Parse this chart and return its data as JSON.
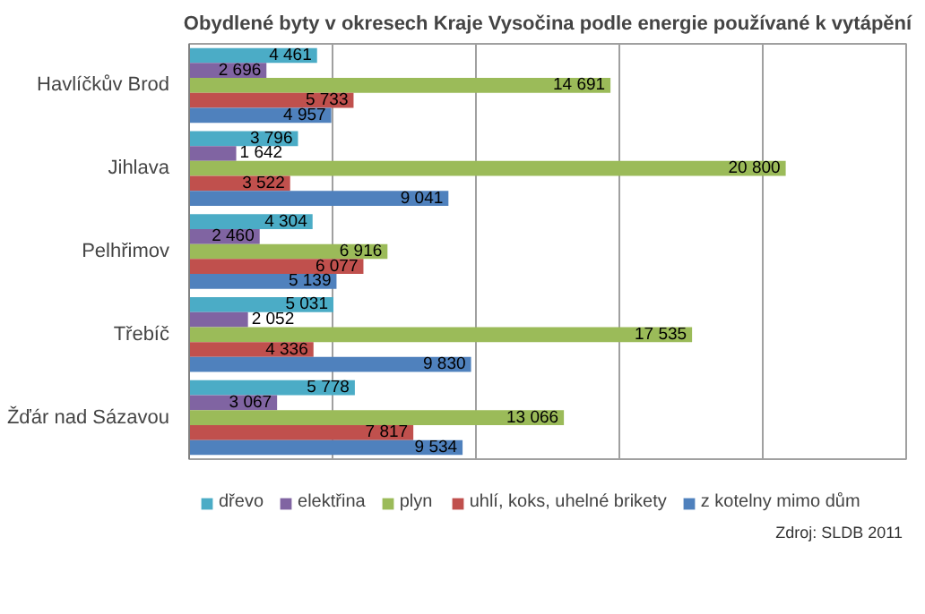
{
  "chart_data": {
    "type": "bar",
    "orientation": "horizontal",
    "title": "Obydlené byty v okresech Kraje Vysočina podle energie používané k vytápění",
    "categories": [
      "Havlíčkův Brod",
      "Jihlava",
      "Pelhřimov",
      "Třebíč",
      "Žďár nad Sázavou"
    ],
    "series": [
      {
        "name": "dřevo",
        "color": "#4bacc6",
        "values": [
          4461,
          3796,
          4304,
          5031,
          5778
        ],
        "value_labels": [
          "4 461",
          "3 796",
          "4 304",
          "5 031",
          "5 778"
        ]
      },
      {
        "name": "elektřina",
        "color": "#8064a2",
        "values": [
          2696,
          1642,
          2460,
          2052,
          3067
        ],
        "value_labels": [
          "2 696",
          "1 642",
          "2 460",
          "2 052",
          "3 067"
        ]
      },
      {
        "name": "plyn",
        "color": "#9bbb59",
        "values": [
          14691,
          20800,
          6916,
          17535,
          13066
        ],
        "value_labels": [
          "14 691",
          "20 800",
          "6 916",
          "17 535",
          "13 066"
        ]
      },
      {
        "name": "uhlí, koks, uhelné brikety",
        "color": "#c0504d",
        "values": [
          5733,
          3522,
          6077,
          4336,
          7817
        ],
        "value_labels": [
          "5 733",
          "3 522",
          "6 077",
          "4 336",
          "7 817"
        ]
      },
      {
        "name": "z kotelny mimo dům",
        "color": "#4f81bd",
        "values": [
          4957,
          9041,
          5139,
          9830,
          9534
        ],
        "value_labels": [
          "4 957",
          "9 041",
          "5 139",
          "9 830",
          "9 534"
        ]
      }
    ],
    "xlim": [
      0,
      25000
    ],
    "xticks": [
      {
        "value": 0,
        "label": null
      },
      {
        "value": 5000,
        "label": null
      },
      {
        "value": 10000,
        "label": null
      },
      {
        "value": 15000,
        "label": null
      },
      {
        "value": 20000,
        "label": null
      },
      {
        "value": 25000,
        "label": null
      }
    ],
    "grid": "x",
    "tick_labels": "y",
    "legend": "bottom",
    "annotations": [
      "Zdroj: SLDB 2011"
    ]
  }
}
